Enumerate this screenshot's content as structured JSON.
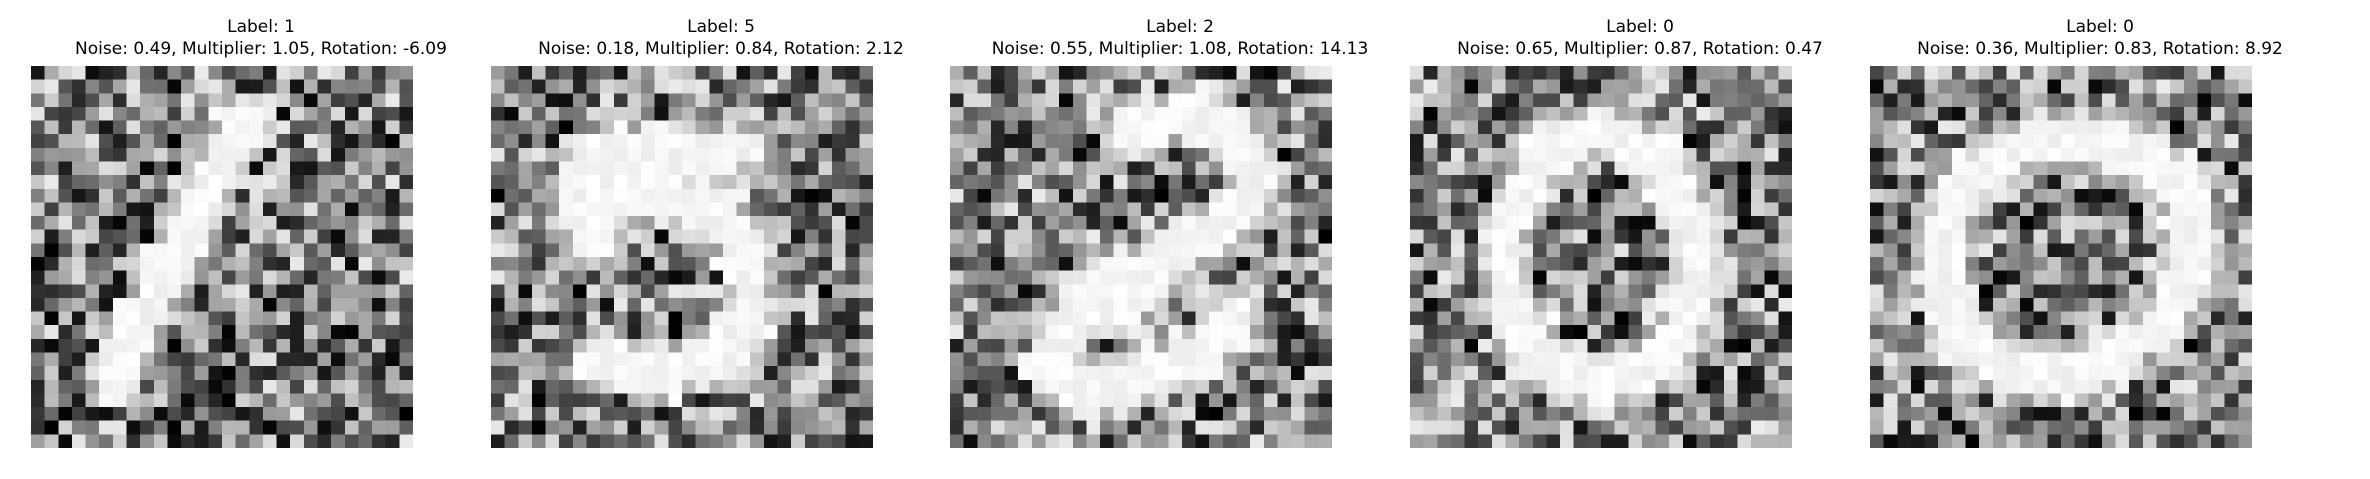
{
  "panels": [
    {
      "label_text": "Label: 1",
      "params_text": "Noise: 0.49, Multiplier: 1.05, Rotation: -6.09",
      "label": 1,
      "noise": 0.49,
      "multiplier": 1.05,
      "rotation": -6.09
    },
    {
      "label_text": "Label: 5",
      "params_text": "Noise: 0.18, Multiplier: 0.84, Rotation: 2.12",
      "label": 5,
      "noise": 0.18,
      "multiplier": 0.84,
      "rotation": 2.12
    },
    {
      "label_text": "Label: 2",
      "params_text": "Noise: 0.55, Multiplier: 1.08, Rotation: 14.13",
      "label": 2,
      "noise": 0.55,
      "multiplier": 1.08,
      "rotation": 14.13
    },
    {
      "label_text": "Label: 0",
      "params_text": "Noise: 0.65, Multiplier: 0.87, Rotation: 0.47",
      "label": 0,
      "noise": 0.65,
      "multiplier": 0.87,
      "rotation": 0.47
    },
    {
      "label_text": "Label: 0",
      "params_text": "Noise: 0.36, Multiplier: 0.83, Rotation: 8.92",
      "label": 0,
      "noise": 0.36,
      "multiplier": 0.83,
      "rotation": 8.92
    }
  ],
  "colormap": "gray"
}
